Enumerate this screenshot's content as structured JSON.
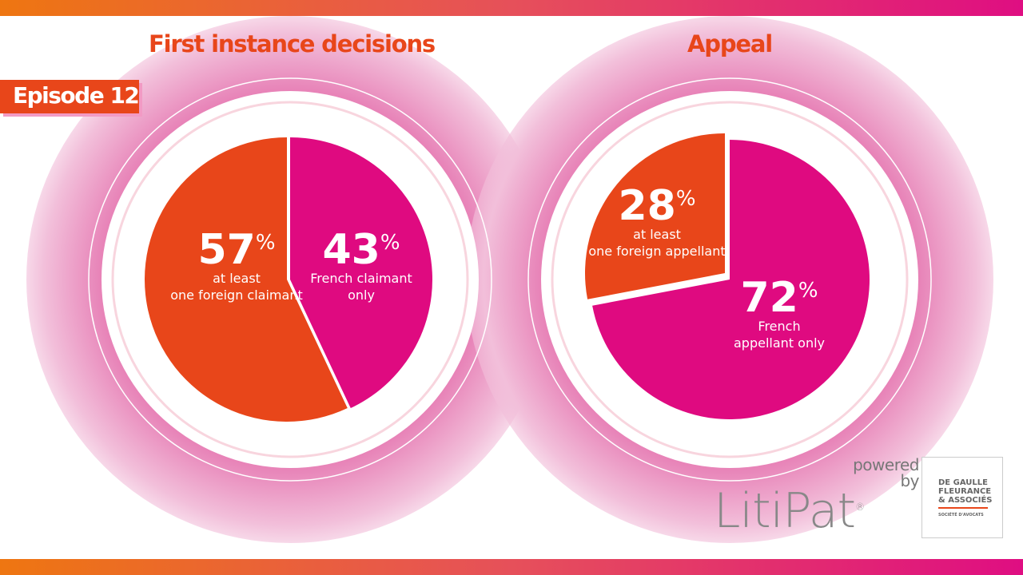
{
  "episode": "Episode 12",
  "colors": {
    "orange": "#E8461A",
    "magenta": "#DF0A80",
    "accent_pink": "#E36DAA"
  },
  "chart_data": [
    {
      "type": "pie",
      "title": "First instance decisions",
      "slices": [
        {
          "label_line1": "French claimant",
          "label_line2": "only",
          "value": 43,
          "color": "#DF0A80"
        },
        {
          "label_line1": "at least",
          "label_line2": "one foreign claimant",
          "value": 57,
          "color": "#E8461A"
        }
      ]
    },
    {
      "type": "pie",
      "title": "Appeal",
      "slices": [
        {
          "label_line1": "French",
          "label_line2": "appellant only",
          "value": 72,
          "color": "#DF0A80"
        },
        {
          "label_line1": "at least",
          "label_line2": "one foreign appellant",
          "value": 28,
          "color": "#E8461A"
        }
      ]
    }
  ],
  "unit": "%",
  "footer": {
    "powered": "powered",
    "by": "by",
    "logo": "LitiPat",
    "registered": "®",
    "firm_line1": "DE GAULLE",
    "firm_line2": "FLEURANCE",
    "firm_line3": "& ASSOCIÉS",
    "firm_sub": "SOCIÉTÉ D'AVOCATS"
  }
}
